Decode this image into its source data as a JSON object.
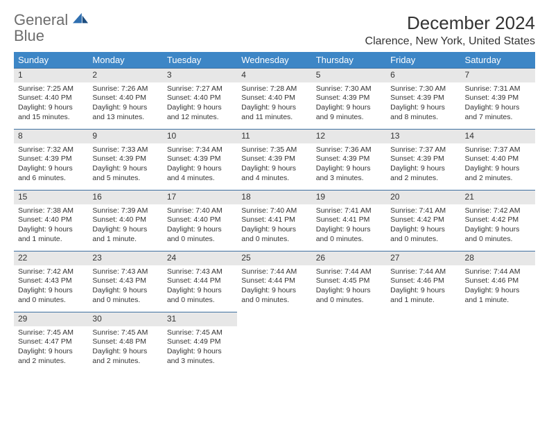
{
  "brand": {
    "part1": "General",
    "part2": "Blue"
  },
  "title": "December 2024",
  "location": "Clarence, New York, United States",
  "colors": {
    "header_bg": "#3d86c6",
    "header_text": "#ffffff",
    "daynum_bg": "#e7e7e7",
    "daynum_border": "#3d6fa0",
    "brand_grey": "#6d6d6d",
    "brand_blue": "#2f6fb0"
  },
  "weekdays": [
    "Sunday",
    "Monday",
    "Tuesday",
    "Wednesday",
    "Thursday",
    "Friday",
    "Saturday"
  ],
  "days": [
    {
      "n": "1",
      "sunrise": "Sunrise: 7:25 AM",
      "sunset": "Sunset: 4:40 PM",
      "daylight": "Daylight: 9 hours and 15 minutes."
    },
    {
      "n": "2",
      "sunrise": "Sunrise: 7:26 AM",
      "sunset": "Sunset: 4:40 PM",
      "daylight": "Daylight: 9 hours and 13 minutes."
    },
    {
      "n": "3",
      "sunrise": "Sunrise: 7:27 AM",
      "sunset": "Sunset: 4:40 PM",
      "daylight": "Daylight: 9 hours and 12 minutes."
    },
    {
      "n": "4",
      "sunrise": "Sunrise: 7:28 AM",
      "sunset": "Sunset: 4:40 PM",
      "daylight": "Daylight: 9 hours and 11 minutes."
    },
    {
      "n": "5",
      "sunrise": "Sunrise: 7:30 AM",
      "sunset": "Sunset: 4:39 PM",
      "daylight": "Daylight: 9 hours and 9 minutes."
    },
    {
      "n": "6",
      "sunrise": "Sunrise: 7:30 AM",
      "sunset": "Sunset: 4:39 PM",
      "daylight": "Daylight: 9 hours and 8 minutes."
    },
    {
      "n": "7",
      "sunrise": "Sunrise: 7:31 AM",
      "sunset": "Sunset: 4:39 PM",
      "daylight": "Daylight: 9 hours and 7 minutes."
    },
    {
      "n": "8",
      "sunrise": "Sunrise: 7:32 AM",
      "sunset": "Sunset: 4:39 PM",
      "daylight": "Daylight: 9 hours and 6 minutes."
    },
    {
      "n": "9",
      "sunrise": "Sunrise: 7:33 AM",
      "sunset": "Sunset: 4:39 PM",
      "daylight": "Daylight: 9 hours and 5 minutes."
    },
    {
      "n": "10",
      "sunrise": "Sunrise: 7:34 AM",
      "sunset": "Sunset: 4:39 PM",
      "daylight": "Daylight: 9 hours and 4 minutes."
    },
    {
      "n": "11",
      "sunrise": "Sunrise: 7:35 AM",
      "sunset": "Sunset: 4:39 PM",
      "daylight": "Daylight: 9 hours and 4 minutes."
    },
    {
      "n": "12",
      "sunrise": "Sunrise: 7:36 AM",
      "sunset": "Sunset: 4:39 PM",
      "daylight": "Daylight: 9 hours and 3 minutes."
    },
    {
      "n": "13",
      "sunrise": "Sunrise: 7:37 AM",
      "sunset": "Sunset: 4:39 PM",
      "daylight": "Daylight: 9 hours and 2 minutes."
    },
    {
      "n": "14",
      "sunrise": "Sunrise: 7:37 AM",
      "sunset": "Sunset: 4:40 PM",
      "daylight": "Daylight: 9 hours and 2 minutes."
    },
    {
      "n": "15",
      "sunrise": "Sunrise: 7:38 AM",
      "sunset": "Sunset: 4:40 PM",
      "daylight": "Daylight: 9 hours and 1 minute."
    },
    {
      "n": "16",
      "sunrise": "Sunrise: 7:39 AM",
      "sunset": "Sunset: 4:40 PM",
      "daylight": "Daylight: 9 hours and 1 minute."
    },
    {
      "n": "17",
      "sunrise": "Sunrise: 7:40 AM",
      "sunset": "Sunset: 4:40 PM",
      "daylight": "Daylight: 9 hours and 0 minutes."
    },
    {
      "n": "18",
      "sunrise": "Sunrise: 7:40 AM",
      "sunset": "Sunset: 4:41 PM",
      "daylight": "Daylight: 9 hours and 0 minutes."
    },
    {
      "n": "19",
      "sunrise": "Sunrise: 7:41 AM",
      "sunset": "Sunset: 4:41 PM",
      "daylight": "Daylight: 9 hours and 0 minutes."
    },
    {
      "n": "20",
      "sunrise": "Sunrise: 7:41 AM",
      "sunset": "Sunset: 4:42 PM",
      "daylight": "Daylight: 9 hours and 0 minutes."
    },
    {
      "n": "21",
      "sunrise": "Sunrise: 7:42 AM",
      "sunset": "Sunset: 4:42 PM",
      "daylight": "Daylight: 9 hours and 0 minutes."
    },
    {
      "n": "22",
      "sunrise": "Sunrise: 7:42 AM",
      "sunset": "Sunset: 4:43 PM",
      "daylight": "Daylight: 9 hours and 0 minutes."
    },
    {
      "n": "23",
      "sunrise": "Sunrise: 7:43 AM",
      "sunset": "Sunset: 4:43 PM",
      "daylight": "Daylight: 9 hours and 0 minutes."
    },
    {
      "n": "24",
      "sunrise": "Sunrise: 7:43 AM",
      "sunset": "Sunset: 4:44 PM",
      "daylight": "Daylight: 9 hours and 0 minutes."
    },
    {
      "n": "25",
      "sunrise": "Sunrise: 7:44 AM",
      "sunset": "Sunset: 4:44 PM",
      "daylight": "Daylight: 9 hours and 0 minutes."
    },
    {
      "n": "26",
      "sunrise": "Sunrise: 7:44 AM",
      "sunset": "Sunset: 4:45 PM",
      "daylight": "Daylight: 9 hours and 0 minutes."
    },
    {
      "n": "27",
      "sunrise": "Sunrise: 7:44 AM",
      "sunset": "Sunset: 4:46 PM",
      "daylight": "Daylight: 9 hours and 1 minute."
    },
    {
      "n": "28",
      "sunrise": "Sunrise: 7:44 AM",
      "sunset": "Sunset: 4:46 PM",
      "daylight": "Daylight: 9 hours and 1 minute."
    },
    {
      "n": "29",
      "sunrise": "Sunrise: 7:45 AM",
      "sunset": "Sunset: 4:47 PM",
      "daylight": "Daylight: 9 hours and 2 minutes."
    },
    {
      "n": "30",
      "sunrise": "Sunrise: 7:45 AM",
      "sunset": "Sunset: 4:48 PM",
      "daylight": "Daylight: 9 hours and 2 minutes."
    },
    {
      "n": "31",
      "sunrise": "Sunrise: 7:45 AM",
      "sunset": "Sunset: 4:49 PM",
      "daylight": "Daylight: 9 hours and 3 minutes."
    }
  ]
}
